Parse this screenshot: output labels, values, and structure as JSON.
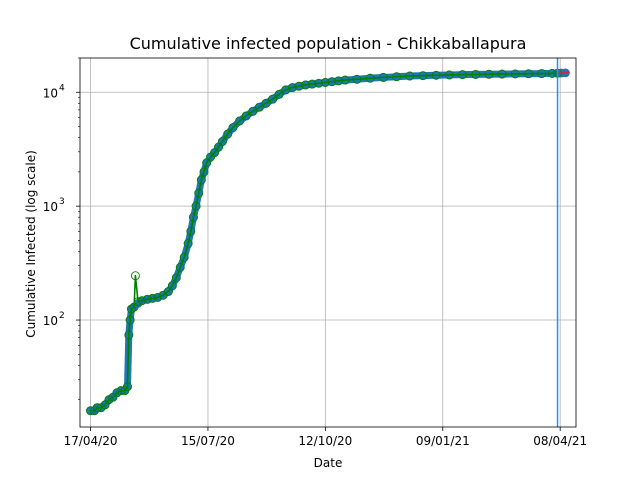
{
  "chart_data": {
    "type": "line",
    "title": "Cumulative infected population - Chikkaballapura",
    "xlabel": "Date",
    "ylabel": "Cumulative Infected (log scale)",
    "x_scale": "date",
    "y_scale": "log",
    "grid": true,
    "xlim": [
      "2020-04-09",
      "2021-04-20"
    ],
    "ylim": [
      11.5,
      20000
    ],
    "x_ticks": [
      {
        "date": "2020-04-17",
        "label": "17/04/20"
      },
      {
        "date": "2020-07-15",
        "label": "15/07/20"
      },
      {
        "date": "2020-10-12",
        "label": "12/10/20"
      },
      {
        "date": "2021-01-09",
        "label": "09/01/21"
      },
      {
        "date": "2021-04-08",
        "label": "08/04/21"
      }
    ],
    "y_ticks": [
      {
        "value": 100,
        "label": "10",
        "exp": "2"
      },
      {
        "value": 1000,
        "label": "10",
        "exp": "3"
      },
      {
        "value": 10000,
        "label": "10",
        "exp": "4"
      }
    ],
    "series": [
      {
        "kind": "observed",
        "color": "#1f77b4",
        "marker": "circle-filled-outline",
        "x": [
          "2020-04-17",
          "2020-04-20",
          "2020-04-22",
          "2020-04-25",
          "2020-04-28",
          "2020-05-01",
          "2020-05-04",
          "2020-05-07",
          "2020-05-10",
          "2020-05-13",
          "2020-05-15",
          "2020-05-16",
          "2020-05-17",
          "2020-05-18",
          "2020-05-20",
          "2020-05-23",
          "2020-05-26",
          "2020-05-30",
          "2020-06-03",
          "2020-06-07",
          "2020-06-11",
          "2020-06-15",
          "2020-06-18",
          "2020-06-21",
          "2020-06-24",
          "2020-06-27",
          "2020-06-30",
          "2020-07-02",
          "2020-07-04",
          "2020-07-06",
          "2020-07-08",
          "2020-07-10",
          "2020-07-12",
          "2020-07-14",
          "2020-07-17",
          "2020-07-20",
          "2020-07-23",
          "2020-07-26",
          "2020-07-30",
          "2020-08-03",
          "2020-08-08",
          "2020-08-13",
          "2020-08-18",
          "2020-08-23",
          "2020-08-28",
          "2020-09-02",
          "2020-09-07",
          "2020-09-12",
          "2020-09-17",
          "2020-09-22",
          "2020-09-27",
          "2020-10-02",
          "2020-10-07",
          "2020-10-12",
          "2020-10-17",
          "2020-10-22",
          "2020-10-27",
          "2020-11-05",
          "2020-11-15",
          "2020-11-25",
          "2020-12-05",
          "2020-12-15",
          "2020-12-25",
          "2021-01-04",
          "2021-01-14",
          "2021-01-24",
          "2021-02-03",
          "2021-02-13",
          "2021-02-23",
          "2021-03-05",
          "2021-03-15",
          "2021-03-25",
          "2021-04-02",
          "2021-04-06",
          "2021-04-09",
          "2021-04-12"
        ],
        "y": [
          16,
          16,
          17,
          17,
          18,
          20,
          21,
          23,
          24,
          24,
          26,
          74,
          100,
          125,
          130,
          140,
          148,
          152,
          155,
          158,
          165,
          178,
          200,
          235,
          290,
          355,
          470,
          600,
          800,
          1000,
          1300,
          1700,
          2000,
          2400,
          2700,
          2950,
          3300,
          3700,
          4300,
          4900,
          5600,
          6200,
          6800,
          7400,
          8000,
          8700,
          9600,
          10500,
          11000,
          11300,
          11600,
          11800,
          12000,
          12200,
          12400,
          12600,
          12800,
          13000,
          13300,
          13500,
          13700,
          13900,
          14000,
          14100,
          14200,
          14300,
          14350,
          14400,
          14450,
          14500,
          14550,
          14600,
          14650,
          14700,
          14750,
          14800
        ]
      },
      {
        "kind": "fit",
        "color": "#008000",
        "marker": "open-circle",
        "x": [
          "2020-04-17",
          "2020-04-20",
          "2020-04-22",
          "2020-04-25",
          "2020-04-28",
          "2020-05-01",
          "2020-05-04",
          "2020-05-07",
          "2020-05-10",
          "2020-05-13",
          "2020-05-15",
          "2020-05-16",
          "2020-05-17",
          "2020-05-18",
          "2020-05-20",
          "2020-05-21",
          "2020-05-23",
          "2020-05-26",
          "2020-05-30",
          "2020-06-03",
          "2020-06-07",
          "2020-06-11",
          "2020-06-15",
          "2020-06-18",
          "2020-06-21",
          "2020-06-24",
          "2020-06-27",
          "2020-06-30",
          "2020-07-02",
          "2020-07-04",
          "2020-07-06",
          "2020-07-08",
          "2020-07-10",
          "2020-07-12",
          "2020-07-14",
          "2020-07-17",
          "2020-07-20",
          "2020-07-23",
          "2020-07-26",
          "2020-07-30",
          "2020-08-03",
          "2020-08-08",
          "2020-08-13",
          "2020-08-18",
          "2020-08-23",
          "2020-08-28",
          "2020-09-02",
          "2020-09-07",
          "2020-09-12",
          "2020-09-17",
          "2020-09-22",
          "2020-09-27",
          "2020-10-02",
          "2020-10-07",
          "2020-10-12",
          "2020-10-17",
          "2020-10-22",
          "2020-10-27",
          "2020-11-05",
          "2020-11-15",
          "2020-11-25",
          "2020-12-05",
          "2020-12-15",
          "2020-12-25",
          "2021-01-04",
          "2021-01-14",
          "2021-01-24",
          "2021-02-03",
          "2021-02-13",
          "2021-02-23",
          "2021-03-05",
          "2021-03-15",
          "2021-03-25",
          "2021-04-02",
          "2021-04-06"
        ],
        "y": [
          16,
          16,
          17,
          17,
          18,
          20,
          21,
          23,
          24,
          24,
          26,
          74,
          100,
          125,
          130,
          245,
          145,
          148,
          152,
          155,
          158,
          165,
          178,
          200,
          235,
          290,
          355,
          470,
          600,
          800,
          1000,
          1300,
          1700,
          2000,
          2400,
          2700,
          2950,
          3300,
          3700,
          4300,
          4900,
          5600,
          6200,
          6800,
          7400,
          8000,
          8700,
          9600,
          10500,
          11000,
          11300,
          11600,
          11800,
          12000,
          12200,
          12400,
          12600,
          12800,
          13000,
          13300,
          13500,
          13700,
          13900,
          14000,
          14100,
          14200,
          14300,
          14350,
          14400,
          14450,
          14500,
          14550,
          14600,
          14650,
          14700
        ]
      },
      {
        "kind": "projection",
        "color": "#e6194b",
        "x": [
          "2021-04-06",
          "2021-04-15"
        ],
        "y": [
          14700,
          14900
        ]
      }
    ],
    "vertical_line": {
      "date": "2021-04-06",
      "color": "#1e90ff"
    }
  }
}
